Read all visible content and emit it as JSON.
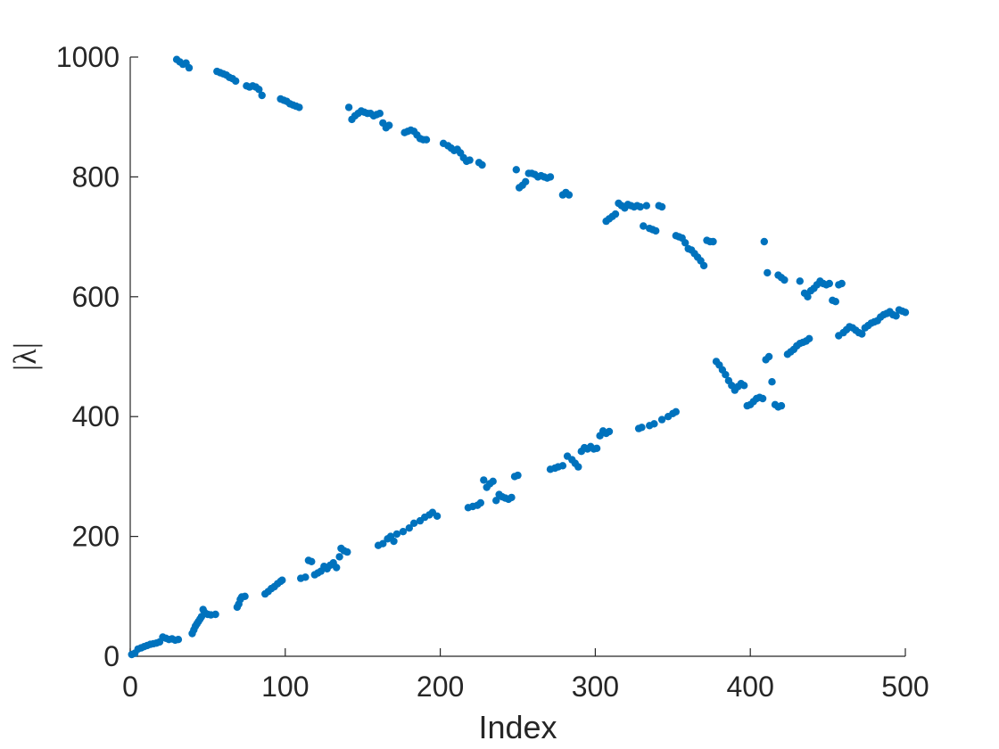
{
  "chart_data": {
    "type": "scatter",
    "title": "",
    "xlabel": "Index",
    "ylabel": "|λ|",
    "xlim": [
      0,
      500
    ],
    "ylim": [
      0,
      1000
    ],
    "xticks": [
      "0",
      "100",
      "200",
      "300",
      "400",
      "500"
    ],
    "yticks": [
      "0",
      "200",
      "400",
      "600",
      "800",
      "1000"
    ],
    "grid": false,
    "marker_color": "#0072BD",
    "series": [
      {
        "name": "",
        "points": [
          [
            1,
            3
          ],
          [
            3,
            5
          ],
          [
            5,
            12
          ],
          [
            7,
            14
          ],
          [
            9,
            16
          ],
          [
            11,
            18
          ],
          [
            13,
            20
          ],
          [
            15,
            21
          ],
          [
            17,
            22
          ],
          [
            19,
            24
          ],
          [
            21,
            32
          ],
          [
            23,
            30
          ],
          [
            25,
            28
          ],
          [
            27,
            29
          ],
          [
            29,
            27
          ],
          [
            31,
            28
          ],
          [
            40,
            38
          ],
          [
            41,
            44
          ],
          [
            42,
            50
          ],
          [
            43,
            54
          ],
          [
            44,
            58
          ],
          [
            45,
            62
          ],
          [
            46,
            66
          ],
          [
            47,
            78
          ],
          [
            48,
            73
          ],
          [
            50,
            70
          ],
          [
            52,
            69
          ],
          [
            55,
            70
          ],
          [
            69,
            82
          ],
          [
            70,
            87
          ],
          [
            71,
            95
          ],
          [
            72,
            99
          ],
          [
            74,
            100
          ],
          [
            87,
            104
          ],
          [
            89,
            108
          ],
          [
            91,
            113
          ],
          [
            93,
            116
          ],
          [
            95,
            121
          ],
          [
            97,
            125
          ],
          [
            98,
            127
          ],
          [
            110,
            130
          ],
          [
            113,
            132
          ],
          [
            115,
            160
          ],
          [
            117,
            158
          ],
          [
            119,
            136
          ],
          [
            121,
            139
          ],
          [
            123,
            142
          ],
          [
            125,
            150
          ],
          [
            127,
            146
          ],
          [
            129,
            152
          ],
          [
            131,
            156
          ],
          [
            133,
            148
          ],
          [
            135,
            166
          ],
          [
            136,
            180
          ],
          [
            138,
            176
          ],
          [
            140,
            174
          ],
          [
            160,
            185
          ],
          [
            163,
            188
          ],
          [
            166,
            196
          ],
          [
            168,
            200
          ],
          [
            170,
            192
          ],
          [
            172,
            204
          ],
          [
            176,
            208
          ],
          [
            180,
            214
          ],
          [
            183,
            222
          ],
          [
            187,
            226
          ],
          [
            190,
            232
          ],
          [
            193,
            236
          ],
          [
            195,
            240
          ],
          [
            198,
            234
          ],
          [
            218,
            248
          ],
          [
            221,
            250
          ],
          [
            224,
            252
          ],
          [
            226,
            256
          ],
          [
            228,
            294
          ],
          [
            230,
            282
          ],
          [
            232,
            288
          ],
          [
            234,
            292
          ],
          [
            236,
            260
          ],
          [
            238,
            270
          ],
          [
            240,
            266
          ],
          [
            242,
            264
          ],
          [
            244,
            262
          ],
          [
            246,
            265
          ],
          [
            248,
            300
          ],
          [
            250,
            302
          ],
          [
            271,
            312
          ],
          [
            274,
            314
          ],
          [
            276,
            316
          ],
          [
            279,
            318
          ],
          [
            282,
            334
          ],
          [
            285,
            328
          ],
          [
            287,
            322
          ],
          [
            289,
            316
          ],
          [
            291,
            342
          ],
          [
            293,
            348
          ],
          [
            295,
            346
          ],
          [
            297,
            350
          ],
          [
            299,
            346
          ],
          [
            301,
            347
          ],
          [
            303,
            368
          ],
          [
            305,
            376
          ],
          [
            307,
            372
          ],
          [
            309,
            375
          ],
          [
            328,
            380
          ],
          [
            330,
            382
          ],
          [
            335,
            385
          ],
          [
            338,
            388
          ],
          [
            343,
            395
          ],
          [
            347,
            400
          ],
          [
            350,
            405
          ],
          [
            352,
            408
          ],
          [
            378,
            492
          ],
          [
            380,
            486
          ],
          [
            382,
            478
          ],
          [
            384,
            470
          ],
          [
            386,
            460
          ],
          [
            388,
            452
          ],
          [
            390,
            444
          ],
          [
            392,
            450
          ],
          [
            394,
            455
          ],
          [
            396,
            452
          ],
          [
            398,
            418
          ],
          [
            400,
            420
          ],
          [
            402,
            425
          ],
          [
            404,
            430
          ],
          [
            406,
            432
          ],
          [
            408,
            430
          ],
          [
            410,
            495
          ],
          [
            412,
            500
          ],
          [
            414,
            458
          ],
          [
            416,
            420
          ],
          [
            418,
            416
          ],
          [
            420,
            418
          ],
          [
            424,
            504
          ],
          [
            426,
            508
          ],
          [
            428,
            512
          ],
          [
            430,
            518
          ],
          [
            432,
            522
          ],
          [
            434,
            524
          ],
          [
            436,
            526
          ],
          [
            438,
            530
          ],
          [
            457,
            535
          ],
          [
            460,
            540
          ],
          [
            462,
            545
          ],
          [
            464,
            550
          ],
          [
            466,
            548
          ],
          [
            468,
            544
          ],
          [
            470,
            540
          ],
          [
            472,
            538
          ],
          [
            474,
            548
          ],
          [
            476,
            552
          ],
          [
            478,
            556
          ],
          [
            480,
            558
          ],
          [
            482,
            560
          ],
          [
            484,
            566
          ],
          [
            486,
            570
          ],
          [
            488,
            572
          ],
          [
            490,
            575
          ],
          [
            492,
            570
          ],
          [
            494,
            568
          ],
          [
            496,
            578
          ],
          [
            498,
            576
          ],
          [
            500,
            574
          ],
          [
            30,
            996
          ],
          [
            32,
            992
          ],
          [
            34,
            988
          ],
          [
            36,
            990
          ],
          [
            38,
            982
          ],
          [
            56,
            976
          ],
          [
            58,
            974
          ],
          [
            60,
            972
          ],
          [
            62,
            970
          ],
          [
            64,
            966
          ],
          [
            66,
            964
          ],
          [
            68,
            960
          ],
          [
            75,
            952
          ],
          [
            77,
            950
          ],
          [
            79,
            952
          ],
          [
            81,
            950
          ],
          [
            83,
            946
          ],
          [
            85,
            936
          ],
          [
            97,
            930
          ],
          [
            99,
            928
          ],
          [
            101,
            926
          ],
          [
            103,
            922
          ],
          [
            105,
            920
          ],
          [
            107,
            918
          ],
          [
            109,
            916
          ],
          [
            141,
            916
          ],
          [
            143,
            896
          ],
          [
            145,
            902
          ],
          [
            147,
            906
          ],
          [
            149,
            910
          ],
          [
            151,
            908
          ],
          [
            153,
            906
          ],
          [
            155,
            906
          ],
          [
            157,
            902
          ],
          [
            159,
            904
          ],
          [
            161,
            906
          ],
          [
            163,
            890
          ],
          [
            165,
            882
          ],
          [
            167,
            886
          ],
          [
            177,
            874
          ],
          [
            179,
            876
          ],
          [
            181,
            878
          ],
          [
            183,
            876
          ],
          [
            185,
            870
          ],
          [
            187,
            864
          ],
          [
            189,
            862
          ],
          [
            191,
            862
          ],
          [
            202,
            856
          ],
          [
            205,
            852
          ],
          [
            207,
            848
          ],
          [
            209,
            844
          ],
          [
            211,
            846
          ],
          [
            213,
            840
          ],
          [
            215,
            832
          ],
          [
            217,
            826
          ],
          [
            219,
            828
          ],
          [
            225,
            824
          ],
          [
            227,
            820
          ],
          [
            249,
            812
          ],
          [
            251,
            782
          ],
          [
            253,
            786
          ],
          [
            255,
            792
          ],
          [
            257,
            806
          ],
          [
            259,
            806
          ],
          [
            261,
            804
          ],
          [
            263,
            800
          ],
          [
            265,
            802
          ],
          [
            267,
            800
          ],
          [
            269,
            798
          ],
          [
            271,
            800
          ],
          [
            279,
            770
          ],
          [
            281,
            774
          ],
          [
            283,
            770
          ],
          [
            307,
            726
          ],
          [
            309,
            730
          ],
          [
            311,
            734
          ],
          [
            313,
            738
          ],
          [
            315,
            756
          ],
          [
            317,
            752
          ],
          [
            319,
            748
          ],
          [
            321,
            754
          ],
          [
            323,
            752
          ],
          [
            325,
            750
          ],
          [
            327,
            752
          ],
          [
            329,
            750
          ],
          [
            331,
            718
          ],
          [
            333,
            752
          ],
          [
            335,
            714
          ],
          [
            337,
            712
          ],
          [
            339,
            710
          ],
          [
            341,
            752
          ],
          [
            343,
            750
          ],
          [
            352,
            702
          ],
          [
            354,
            700
          ],
          [
            356,
            698
          ],
          [
            358,
            690
          ],
          [
            360,
            680
          ],
          [
            362,
            678
          ],
          [
            364,
            672
          ],
          [
            366,
            666
          ],
          [
            368,
            660
          ],
          [
            370,
            652
          ],
          [
            372,
            694
          ],
          [
            374,
            692
          ],
          [
            376,
            692
          ],
          [
            409,
            692
          ],
          [
            411,
            640
          ],
          [
            418,
            636
          ],
          [
            420,
            632
          ],
          [
            422,
            628
          ],
          [
            432,
            626
          ],
          [
            435,
            606
          ],
          [
            437,
            600
          ],
          [
            439,
            610
          ],
          [
            441,
            614
          ],
          [
            443,
            620
          ],
          [
            445,
            626
          ],
          [
            447,
            622
          ],
          [
            449,
            620
          ],
          [
            451,
            622
          ],
          [
            453,
            594
          ],
          [
            455,
            592
          ],
          [
            457,
            620
          ],
          [
            459,
            622
          ]
        ]
      }
    ]
  }
}
